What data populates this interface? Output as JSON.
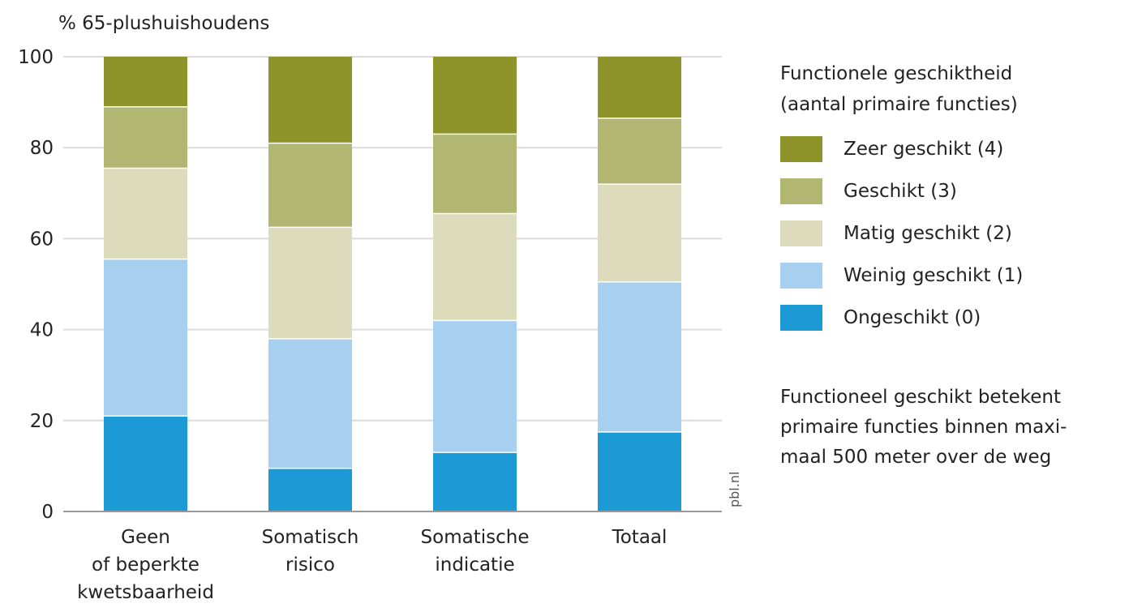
{
  "chart_data": {
    "type": "bar",
    "stacked": true,
    "ylabel": "% 65-plushuishoudens",
    "ylim": [
      0,
      100
    ],
    "yticks": [
      0,
      20,
      40,
      60,
      80,
      100
    ],
    "grid": true,
    "legend_position": "right",
    "categories": [
      [
        "Geen",
        "of beperkte",
        "kwetsbaarheid"
      ],
      [
        "Somatisch",
        "risico"
      ],
      [
        "Somatische",
        "indicatie"
      ],
      [
        "Totaal"
      ]
    ],
    "legend_title": [
      "Functionele geschiktheid",
      "(aantal primaire functies)"
    ],
    "series": [
      {
        "name": "Ongeschikt (0)",
        "color": "#1c9ad6",
        "values": [
          21,
          9.5,
          13,
          17.5
        ]
      },
      {
        "name": "Weinig geschikt (1)",
        "color": "#a6cff0",
        "values": [
          34.5,
          28.5,
          29,
          33
        ]
      },
      {
        "name": "Matig geschikt (2)",
        "color": "#dcdcbc",
        "values": [
          20,
          24.5,
          23.5,
          21.5
        ]
      },
      {
        "name": "Geschikt (3)",
        "color": "#b2b673",
        "values": [
          13.5,
          18.5,
          17.5,
          14.5
        ]
      },
      {
        "name": "Zeer geschikt (4)",
        "color": "#8e9429",
        "values": [
          11,
          19,
          17,
          13.5
        ]
      }
    ],
    "note": [
      "Functioneel geschikt betekent",
      "primaire functies binnen maxi-",
      "maal 500 meter over de weg"
    ],
    "source": "pbl.nl"
  }
}
